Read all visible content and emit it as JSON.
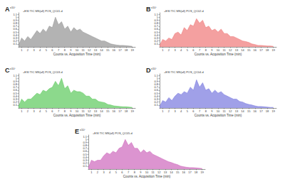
{
  "chart_data": [
    {
      "type": "line",
      "annotations": [
        "A"
      ],
      "title": "+ESI TIC MS(all) POS_QC01.d",
      "ylabel": "x10⁷",
      "xlabel": "Counts vs. Acquisition Time (min)",
      "color": "#9a9a9a",
      "grid": false,
      "x": [
        0.5,
        1,
        1.5,
        2,
        2.5,
        3,
        3.5,
        4,
        4.5,
        5,
        5.5,
        6,
        6.5,
        7,
        7.5,
        8,
        8.5,
        9,
        9.5,
        10,
        10.5,
        11,
        11.5,
        12,
        12.5,
        13,
        13.5,
        14,
        14.5,
        15,
        15.5,
        16,
        16.5,
        17,
        17.5,
        18,
        18.5,
        19
      ],
      "values": [
        0.05,
        0.3,
        0.2,
        0.35,
        0.25,
        0.4,
        0.55,
        0.45,
        0.6,
        0.5,
        0.7,
        0.65,
        1.0,
        0.75,
        0.85,
        0.6,
        0.7,
        0.5,
        0.65,
        0.55,
        0.6,
        0.5,
        0.45,
        0.4,
        0.35,
        0.3,
        0.25,
        0.2,
        0.2,
        0.15,
        0.1,
        0.08,
        0.06,
        0.05,
        0.05,
        0.04,
        0.03,
        0.02
      ],
      "xlim": [
        0.5,
        19.5
      ],
      "xticks": [
        1,
        2,
        3,
        4,
        5,
        6,
        7,
        8,
        9,
        10,
        11,
        12,
        13,
        14,
        15,
        16,
        17,
        18,
        19
      ],
      "ylim": [
        0,
        1.15
      ],
      "yticks": [
        0.1,
        0.2,
        0.3,
        0.4,
        0.5,
        0.6,
        0.7,
        0.8,
        0.9,
        1,
        1.1
      ]
    },
    {
      "type": "line",
      "annotations": [
        "B"
      ],
      "title": "+ESI TIC MS(all) POS_QC02.d",
      "ylabel": "x10⁷",
      "xlabel": "Counts vs. Acquisition Time (min)",
      "color": "#f08080",
      "grid": false,
      "x": [
        0.5,
        1,
        1.5,
        2,
        2.5,
        3,
        3.5,
        4,
        4.5,
        5,
        5.5,
        6,
        6.5,
        7,
        7.5,
        8,
        8.5,
        9,
        9.5,
        10,
        10.5,
        11,
        11.5,
        12,
        12.5,
        13,
        13.5,
        14,
        14.5,
        15,
        15.5,
        16,
        16.5,
        17,
        17.5,
        18,
        18.5,
        19
      ],
      "values": [
        0.05,
        0.25,
        0.2,
        0.3,
        0.25,
        0.45,
        0.5,
        0.4,
        0.65,
        0.55,
        0.75,
        0.7,
        0.95,
        0.8,
        0.9,
        0.65,
        0.7,
        0.55,
        0.6,
        0.5,
        0.6,
        0.45,
        0.45,
        0.35,
        0.35,
        0.3,
        0.25,
        0.2,
        0.18,
        0.15,
        0.1,
        0.08,
        0.05,
        0.05,
        0.04,
        0.03,
        0.03,
        0.02
      ],
      "xlim": [
        0.5,
        19.5
      ],
      "xticks": [
        1,
        2,
        3,
        4,
        5,
        6,
        7,
        8,
        9,
        10,
        11,
        12,
        13,
        14,
        15,
        16,
        17,
        18,
        19
      ],
      "ylim": [
        0,
        1.15
      ],
      "yticks": [
        0.1,
        0.2,
        0.3,
        0.4,
        0.5,
        0.6,
        0.7,
        0.8,
        0.9,
        1,
        1.1
      ]
    },
    {
      "type": "line",
      "annotations": [
        "C"
      ],
      "title": "+ESI TIC MS(all) POS_QC03.d",
      "ylabel": "x10⁷",
      "xlabel": "Counts vs. Acquisition Time (min)",
      "color": "#66cc66",
      "grid": false,
      "x": [
        0.5,
        1,
        1.5,
        2,
        2.5,
        3,
        3.5,
        4,
        4.5,
        5,
        5.5,
        6,
        6.5,
        7,
        7.5,
        8,
        8.5,
        9,
        9.5,
        10,
        10.5,
        11,
        11.5,
        12,
        12.5,
        13,
        13.5,
        14,
        14.5,
        15,
        15.5,
        16,
        16.5,
        17,
        17.5,
        18,
        18.5,
        19
      ],
      "values": [
        0.05,
        0.3,
        0.2,
        0.3,
        0.3,
        0.4,
        0.5,
        0.45,
        0.6,
        0.55,
        0.65,
        0.7,
        0.9,
        0.75,
        1.0,
        0.65,
        0.75,
        0.5,
        0.6,
        0.55,
        0.55,
        0.5,
        0.4,
        0.4,
        0.3,
        0.3,
        0.22,
        0.2,
        0.18,
        0.12,
        0.1,
        0.07,
        0.06,
        0.05,
        0.04,
        0.04,
        0.03,
        0.02
      ],
      "xlim": [
        0.5,
        19.5
      ],
      "xticks": [
        1,
        2,
        3,
        4,
        5,
        6,
        7,
        8,
        9,
        10,
        11,
        12,
        13,
        14,
        15,
        16,
        17,
        18,
        19
      ],
      "ylim": [
        0,
        1.15
      ],
      "yticks": [
        0.1,
        0.2,
        0.3,
        0.4,
        0.5,
        0.6,
        0.7,
        0.8,
        0.9,
        1,
        1.1
      ]
    },
    {
      "type": "line",
      "annotations": [
        "D"
      ],
      "title": "+ESI TIC MS(all) POS_QC04.d",
      "ylabel": "x10⁷",
      "xlabel": "Counts vs. Acquisition Time (min)",
      "color": "#8080e0",
      "grid": false,
      "x": [
        0.5,
        1,
        1.5,
        2,
        2.5,
        3,
        3.5,
        4,
        4.5,
        5,
        5.5,
        6,
        6.5,
        7,
        7.5,
        8,
        8.5,
        9,
        9.5,
        10,
        10.5,
        11,
        11.5,
        12,
        12.5,
        13,
        13.5,
        14,
        14.5,
        15,
        15.5,
        16,
        16.5,
        17,
        17.5,
        18,
        18.5,
        19
      ],
      "values": [
        0.05,
        0.25,
        0.2,
        0.35,
        0.25,
        0.4,
        0.5,
        0.45,
        0.55,
        0.5,
        0.7,
        0.6,
        0.95,
        0.7,
        0.85,
        0.6,
        0.65,
        0.5,
        0.6,
        0.5,
        0.55,
        0.45,
        0.4,
        0.35,
        0.3,
        0.3,
        0.22,
        0.2,
        0.15,
        0.12,
        0.1,
        0.07,
        0.05,
        0.05,
        0.04,
        0.03,
        0.02,
        0.02
      ],
      "xlim": [
        0.5,
        19.5
      ],
      "xticks": [
        1,
        2,
        3,
        4,
        5,
        6,
        7,
        8,
        9,
        10,
        11,
        12,
        13,
        14,
        15,
        16,
        17,
        18,
        19
      ],
      "ylim": [
        0,
        1.15
      ],
      "yticks": [
        0.1,
        0.2,
        0.3,
        0.4,
        0.5,
        0.6,
        0.7,
        0.8,
        0.9,
        1,
        1.1
      ]
    },
    {
      "type": "line",
      "annotations": [
        "E"
      ],
      "title": "+ESI TIC MS(all) POS_QC05.d",
      "ylabel": "x10⁷",
      "xlabel": "Counts vs. Acquisition Time (min)",
      "color": "#d070c0",
      "grid": false,
      "x": [
        0.5,
        1,
        1.5,
        2,
        2.5,
        3,
        3.5,
        4,
        4.5,
        5,
        5.5,
        6,
        6.5,
        7,
        7.5,
        8,
        8.5,
        9,
        9.5,
        10,
        10.5,
        11,
        11.5,
        12,
        12.5,
        13,
        13.5,
        14,
        14.5,
        15,
        15.5,
        16,
        16.5,
        17,
        17.5,
        18,
        18.5,
        19
      ],
      "values": [
        0.05,
        0.3,
        0.25,
        0.3,
        0.3,
        0.45,
        0.55,
        0.5,
        0.6,
        0.55,
        0.7,
        0.75,
        1.0,
        0.8,
        0.9,
        0.7,
        0.7,
        0.55,
        0.65,
        0.55,
        0.6,
        0.5,
        0.45,
        0.4,
        0.35,
        0.3,
        0.25,
        0.22,
        0.18,
        0.15,
        0.1,
        0.08,
        0.06,
        0.05,
        0.05,
        0.04,
        0.03,
        0.02
      ],
      "xlim": [
        0.5,
        19.5
      ],
      "xticks": [
        1,
        2,
        3,
        4,
        5,
        6,
        7,
        8,
        9,
        10,
        11,
        12,
        13,
        14,
        15,
        16,
        17,
        18,
        19
      ],
      "ylim": [
        0,
        1.15
      ],
      "yticks": [
        0.1,
        0.2,
        0.3,
        0.4,
        0.5,
        0.6,
        0.7,
        0.8,
        0.9,
        1,
        1.1
      ]
    }
  ]
}
